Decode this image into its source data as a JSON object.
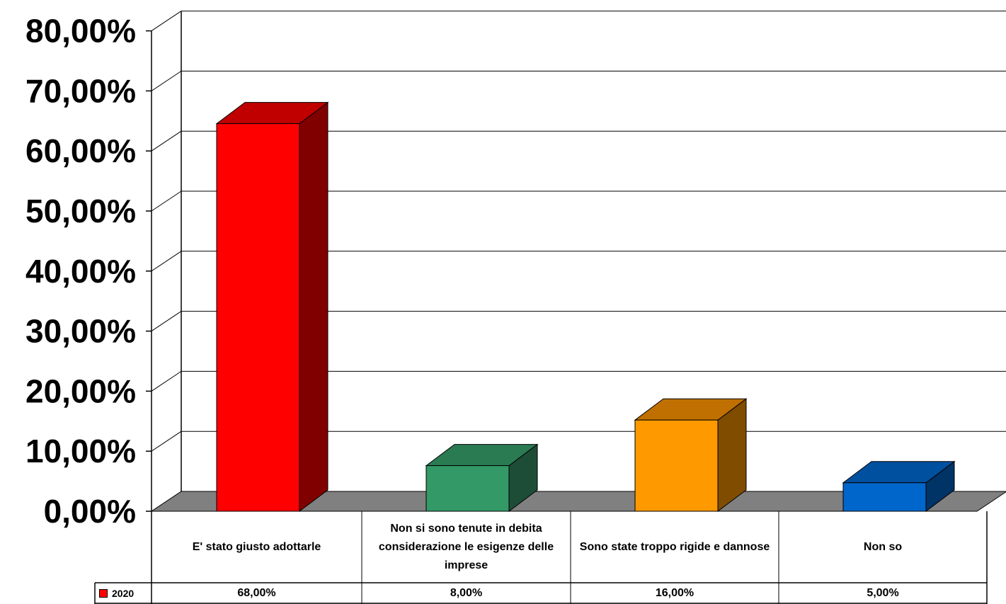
{
  "chart_data": {
    "type": "bar",
    "categories": [
      "E' stato giusto adottarle",
      "Non si sono tenute in debita considerazione  le esigenze delle imprese",
      "Sono state troppo rigide e dannose",
      "Non so"
    ],
    "series": [
      {
        "name": "2020",
        "values": [
          68,
          8,
          16,
          5
        ],
        "value_labels": [
          "68,00%",
          "8,00%",
          "16,00%",
          "5,00%"
        ]
      }
    ],
    "bar_colors": [
      {
        "front": "#FF0000",
        "top": "#C00000",
        "side": "#800000"
      },
      {
        "front": "#339966",
        "top": "#2A7A52",
        "side": "#1E4D37"
      },
      {
        "front": "#FF9900",
        "top": "#C07000",
        "side": "#804C00"
      },
      {
        "front": "#0066CC",
        "top": "#0050A0",
        "side": "#003366"
      }
    ],
    "legend_color": "#FF0000",
    "floor_color": "#808080",
    "ylim": [
      0,
      80
    ],
    "yticks": [
      0,
      10,
      20,
      30,
      40,
      50,
      60,
      70,
      80
    ],
    "ytick_labels": [
      "0,00%",
      "10,00%",
      "20,00%",
      "30,00%",
      "40,00%",
      "50,00%",
      "60,00%",
      "70,00%",
      "80,00%"
    ],
    "grid": true,
    "legend_placement": "data-table-left"
  }
}
